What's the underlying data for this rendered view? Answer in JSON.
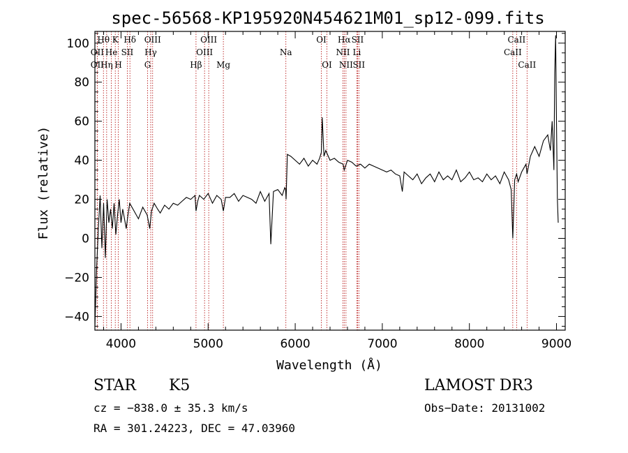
{
  "chart_data": {
    "type": "line",
    "title": "spec-56568-KP195920N454621M01_sp12-099.fits",
    "xlabel": "Wavelength (Å)",
    "ylabel": "Flux (relative)",
    "xlim": [
      3700,
      9100
    ],
    "ylim": [
      -47,
      106
    ],
    "xticks": [
      4000,
      5000,
      6000,
      7000,
      8000,
      9000
    ],
    "yticks": [
      -40,
      -20,
      0,
      20,
      40,
      60,
      80,
      100
    ],
    "grid": false,
    "series": [
      {
        "name": "spectrum",
        "x": [
          3700,
          3720,
          3740,
          3760,
          3780,
          3800,
          3820,
          3840,
          3860,
          3880,
          3900,
          3920,
          3940,
          3960,
          3980,
          4000,
          4020,
          4040,
          4060,
          4080,
          4100,
          4150,
          4200,
          4250,
          4300,
          4330,
          4350,
          4380,
          4420,
          4450,
          4500,
          4550,
          4600,
          4650,
          4700,
          4750,
          4800,
          4850,
          4861,
          4880,
          4900,
          4950,
          5000,
          5050,
          5100,
          5150,
          5175,
          5200,
          5250,
          5300,
          5350,
          5400,
          5450,
          5500,
          5550,
          5600,
          5650,
          5700,
          5720,
          5750,
          5800,
          5850,
          5880,
          5890,
          5895,
          5910,
          5950,
          6000,
          6050,
          6100,
          6150,
          6200,
          6250,
          6280,
          6300,
          6310,
          6330,
          6350,
          6400,
          6450,
          6500,
          6550,
          6563,
          6600,
          6650,
          6700,
          6750,
          6800,
          6850,
          6900,
          6950,
          7000,
          7050,
          7100,
          7150,
          7200,
          7230,
          7250,
          7300,
          7350,
          7400,
          7450,
          7500,
          7550,
          7600,
          7650,
          7700,
          7750,
          7800,
          7850,
          7900,
          7950,
          8000,
          8050,
          8100,
          8150,
          8200,
          8250,
          8300,
          8350,
          8400,
          8450,
          8480,
          8498,
          8520,
          8542,
          8560,
          8600,
          8650,
          8662,
          8700,
          8750,
          8800,
          8850,
          8900,
          8930,
          8950,
          8970,
          8980,
          8990,
          9000,
          9010,
          9020
        ],
        "y": [
          -45,
          -15,
          5,
          22,
          -5,
          18,
          -10,
          20,
          8,
          15,
          5,
          18,
          2,
          12,
          20,
          8,
          15,
          10,
          5,
          12,
          18,
          14,
          10,
          16,
          12,
          5,
          14,
          18,
          15,
          13,
          17,
          15,
          18,
          17,
          19,
          21,
          20,
          22,
          14,
          19,
          22,
          20,
          23,
          18,
          22,
          20,
          14,
          21,
          21,
          23,
          19,
          22,
          21,
          20,
          18,
          24,
          19,
          23,
          -3,
          24,
          25,
          22,
          26,
          25,
          20,
          43,
          42,
          40,
          38,
          41,
          37,
          40,
          38,
          41,
          44,
          62,
          42,
          45,
          40,
          41,
          39,
          38,
          35,
          40,
          39,
          37,
          38,
          36,
          38,
          37,
          36,
          35,
          34,
          35,
          33,
          32,
          24,
          34,
          32,
          30,
          33,
          28,
          31,
          33,
          29,
          34,
          30,
          32,
          30,
          35,
          29,
          31,
          34,
          30,
          31,
          29,
          33,
          30,
          32,
          28,
          34,
          30,
          25,
          0,
          30,
          33,
          29,
          34,
          38,
          33,
          42,
          47,
          42,
          50,
          53,
          45,
          60,
          35,
          85,
          104,
          60,
          20,
          8
        ]
      }
    ],
    "annotations": [
      {
        "label": "Hθ",
        "wl": 3798,
        "row": 0
      },
      {
        "label": "K",
        "wl": 3934,
        "row": 0
      },
      {
        "label": "Hδ",
        "wl": 4102,
        "row": 0
      },
      {
        "label": "OII",
        "wl": 3727,
        "row": 1
      },
      {
        "label": "He",
        "wl": 3889,
        "row": 1
      },
      {
        "label": "SII",
        "wl": 4072,
        "row": 1
      },
      {
        "label": "OII",
        "wl": 3727,
        "row": 2
      },
      {
        "label": "Hη",
        "wl": 3835,
        "row": 2
      },
      {
        "label": "H",
        "wl": 3969,
        "row": 2
      },
      {
        "label": "OIII",
        "wl": 4363,
        "row": 0
      },
      {
        "label": "Hγ",
        "wl": 4341,
        "row": 1
      },
      {
        "label": "G",
        "wl": 4305,
        "row": 2
      },
      {
        "label": "OIII",
        "wl": 5007,
        "row": 0
      },
      {
        "label": "OIII",
        "wl": 4959,
        "row": 1
      },
      {
        "label": "Hβ",
        "wl": 4861,
        "row": 2
      },
      {
        "label": "Mg",
        "wl": 5175,
        "row": 2
      },
      {
        "label": "Na",
        "wl": 5893,
        "row": 1
      },
      {
        "label": "OI",
        "wl": 6300,
        "row": 0
      },
      {
        "label": "OI",
        "wl": 6364,
        "row": 2
      },
      {
        "label": "Hα",
        "wl": 6563,
        "row": 0
      },
      {
        "label": "NII",
        "wl": 6548,
        "row": 1
      },
      {
        "label": "NII",
        "wl": 6583,
        "row": 2
      },
      {
        "label": "SII",
        "wl": 6716,
        "row": 0
      },
      {
        "label": "Li",
        "wl": 6708,
        "row": 1
      },
      {
        "label": "SII",
        "wl": 6731,
        "row": 2
      },
      {
        "label": "CaII",
        "wl": 8542,
        "row": 0
      },
      {
        "label": "CaII",
        "wl": 8498,
        "row": 1
      },
      {
        "label": "CaII",
        "wl": 8662,
        "row": 2
      }
    ],
    "line_color": "#000000",
    "marker_line_color": "#b00000"
  },
  "info": {
    "class": "STAR",
    "subclass": "K5",
    "survey": "LAMOST DR3",
    "cz": "cz = −838.0 ± 35.3 km/s",
    "obs_date": "Obs−Date: 20131002",
    "coords": "RA = 301.24223, DEC =  47.03960"
  }
}
